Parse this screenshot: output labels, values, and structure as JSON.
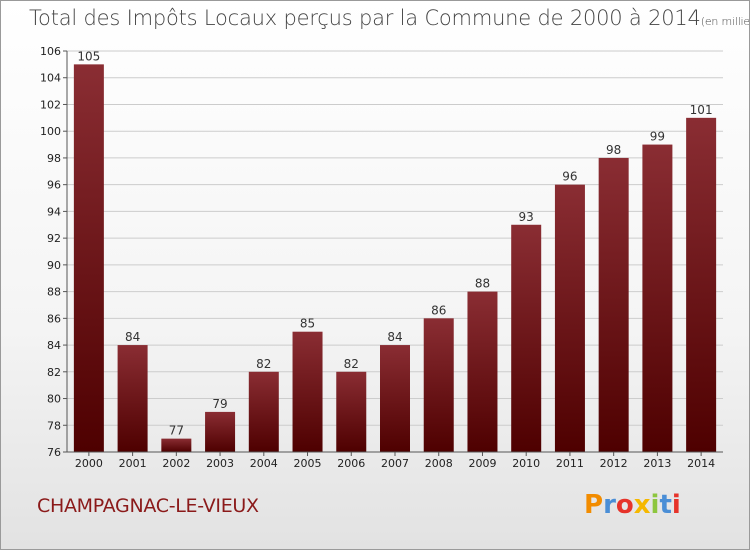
{
  "header": {
    "title": "Total des Impôts Locaux perçus par la Commune de 2000 à 2014",
    "unit": "(en milliers d'€)"
  },
  "footer": {
    "commune": "CHAMPAGNAC-LE-VIEUX",
    "brand": "Proxiti",
    "brand_colors": [
      "#f28c00",
      "#4a8ed6",
      "#e6332a",
      "#f5b800",
      "#8dc63f",
      "#4a8ed6",
      "#e6332a"
    ]
  },
  "colors": {
    "bar_dark": "#4e0000",
    "bar_light": "#8a2d33",
    "grid": "#cccccc",
    "axis_text": "#222222",
    "label_text": "#333333"
  },
  "chart_data": {
    "type": "bar",
    "title": "Total des Impôts Locaux perçus par la Commune de 2000 à 2014",
    "xlabel": "",
    "ylabel": "",
    "categories": [
      "2000",
      "2001",
      "2002",
      "2003",
      "2004",
      "2005",
      "2006",
      "2007",
      "2008",
      "2009",
      "2010",
      "2011",
      "2012",
      "2013",
      "2014"
    ],
    "values": [
      105,
      84,
      77,
      79,
      82,
      85,
      82,
      84,
      86,
      88,
      93,
      96,
      98,
      99,
      101
    ],
    "ylim": [
      76,
      106
    ],
    "yticks": [
      76,
      78,
      80,
      82,
      84,
      86,
      88,
      90,
      92,
      94,
      96,
      98,
      100,
      102,
      104,
      106
    ],
    "grid": true
  }
}
